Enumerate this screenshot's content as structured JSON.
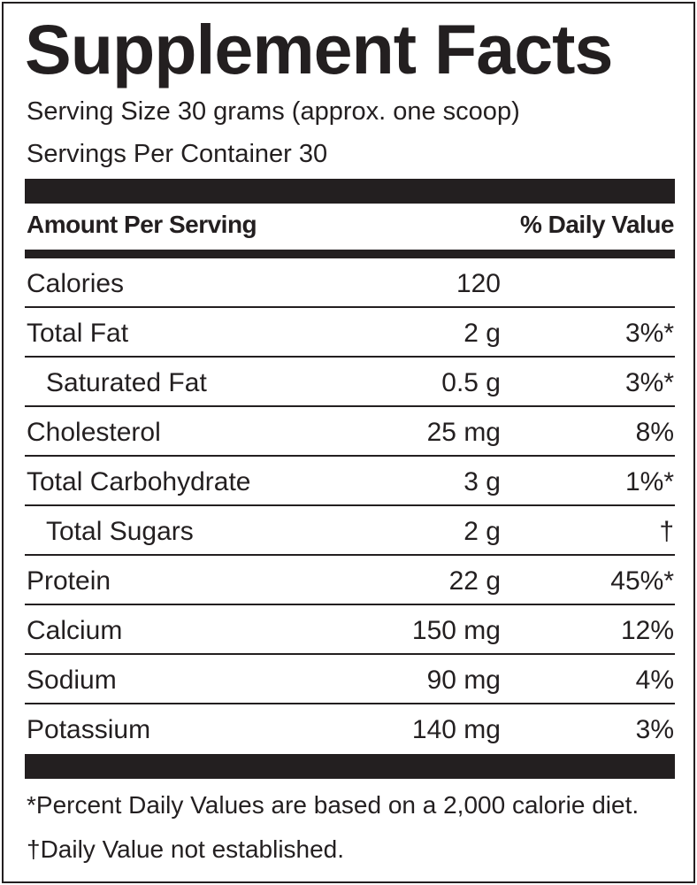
{
  "title": "Supplement Facts",
  "serving_size": "Serving Size 30 grams (approx. one scoop)",
  "servings_per_container": "Servings Per Container 30",
  "header": {
    "amount": "Amount Per Serving",
    "daily_value": "% Daily Value"
  },
  "rows": [
    {
      "name": "Calories",
      "amount": "120"
    },
    {
      "name": "Total Fat",
      "amount": "2 g",
      "dv": "3%*"
    },
    {
      "name": "Saturated Fat",
      "amount": "0.5 g",
      "dv": "3%*",
      "indent": true
    },
    {
      "name": "Cholesterol",
      "amount": "25 mg",
      "dv": "8%"
    },
    {
      "name": "Total Carbohydrate",
      "amount": "3 g",
      "dv": "1%*"
    },
    {
      "name": "Total Sugars",
      "amount": "2 g",
      "dv": "†",
      "indent": true
    },
    {
      "name": "Protein",
      "amount": "22 g",
      "dv": "45%*"
    },
    {
      "name": "Calcium",
      "amount": "150 mg",
      "dv": "12%"
    },
    {
      "name": "Sodium",
      "amount": "90 mg",
      "dv": "4%"
    },
    {
      "name": "Potassium",
      "amount": "140 mg",
      "dv": "3%"
    }
  ],
  "footnotes": [
    "*Percent Daily Values are based on a 2,000 calorie diet.",
    "†Daily Value not established."
  ]
}
